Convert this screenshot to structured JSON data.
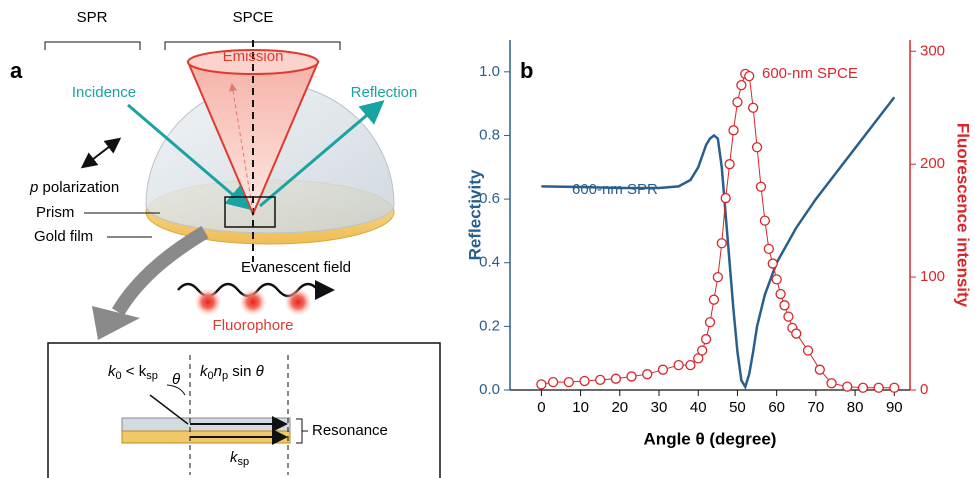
{
  "panel_a": {
    "label": "a",
    "brackets": [
      "SPR",
      "SPCE"
    ],
    "emission": "Emission",
    "incidence": "Incidence",
    "reflection": "Reflection",
    "polarization": [
      "p",
      " polarization"
    ],
    "prism": "Prism",
    "gold_film": "Gold film",
    "evanescent": "Evanescent field",
    "fluorophore": "Fluorophore",
    "inset": {
      "condition": [
        "k",
        "0",
        " < k",
        "sp"
      ],
      "theta": "θ",
      "projection": [
        "k",
        "0",
        "n",
        "p",
        " sin ",
        "θ"
      ],
      "resonance": "Resonance",
      "ksp": [
        "k",
        "sp"
      ]
    }
  },
  "chart_data": {
    "type": "line",
    "panel_label": "b",
    "xlabel": "Angle θ (degree)",
    "ylabel": "Reflectivity",
    "y2label": "Fluorescence intensity",
    "xlim": [
      -8,
      94
    ],
    "xticks": [
      0,
      10,
      20,
      30,
      40,
      50,
      60,
      70,
      80,
      90
    ],
    "ylim": [
      0,
      1.1
    ],
    "yticks": [
      {
        "value": 0,
        "label": "0.0"
      },
      0.2,
      0.4,
      0.6,
      0.8,
      {
        "value": 1,
        "label": "1.0"
      }
    ],
    "y2lim": [
      0,
      310
    ],
    "y2ticks": [
      0,
      100,
      200,
      300
    ],
    "series": [
      {
        "name": "600-nm SPR",
        "color": "#2a5e8c",
        "axis": "y",
        "marker": "none",
        "x": [
          0,
          10,
          20,
          30,
          35,
          38,
          40,
          42,
          43,
          44,
          45,
          46,
          47,
          48,
          49,
          50,
          51,
          52,
          53,
          54,
          55,
          57,
          60,
          65,
          70,
          75,
          80,
          85,
          90
        ],
        "values": [
          0.64,
          0.638,
          0.635,
          0.635,
          0.64,
          0.66,
          0.7,
          0.77,
          0.79,
          0.8,
          0.79,
          0.7,
          0.55,
          0.4,
          0.25,
          0.12,
          0.03,
          0.01,
          0.05,
          0.12,
          0.2,
          0.3,
          0.4,
          0.51,
          0.6,
          0.68,
          0.76,
          0.84,
          0.92
        ]
      },
      {
        "name": "600-nm SPCE",
        "color": "#d9262b",
        "axis": "y2",
        "marker": "circle",
        "x": [
          0,
          3,
          7,
          11,
          15,
          19,
          23,
          27,
          31,
          35,
          38,
          40,
          41,
          42,
          43,
          44,
          45,
          46,
          47,
          48,
          49,
          50,
          51,
          52,
          53,
          54,
          55,
          56,
          57,
          58,
          59,
          60,
          61,
          62,
          63,
          64,
          65,
          68,
          71,
          74,
          78,
          82,
          86,
          90
        ],
        "values": [
          5,
          7,
          7,
          8,
          9,
          10,
          12,
          14,
          18,
          22,
          22,
          28,
          35,
          45,
          60,
          80,
          100,
          130,
          170,
          200,
          230,
          255,
          270,
          280,
          278,
          250,
          215,
          180,
          150,
          125,
          112,
          98,
          85,
          75,
          65,
          55,
          50,
          35,
          18,
          6,
          3,
          2,
          2,
          2
        ]
      }
    ]
  }
}
